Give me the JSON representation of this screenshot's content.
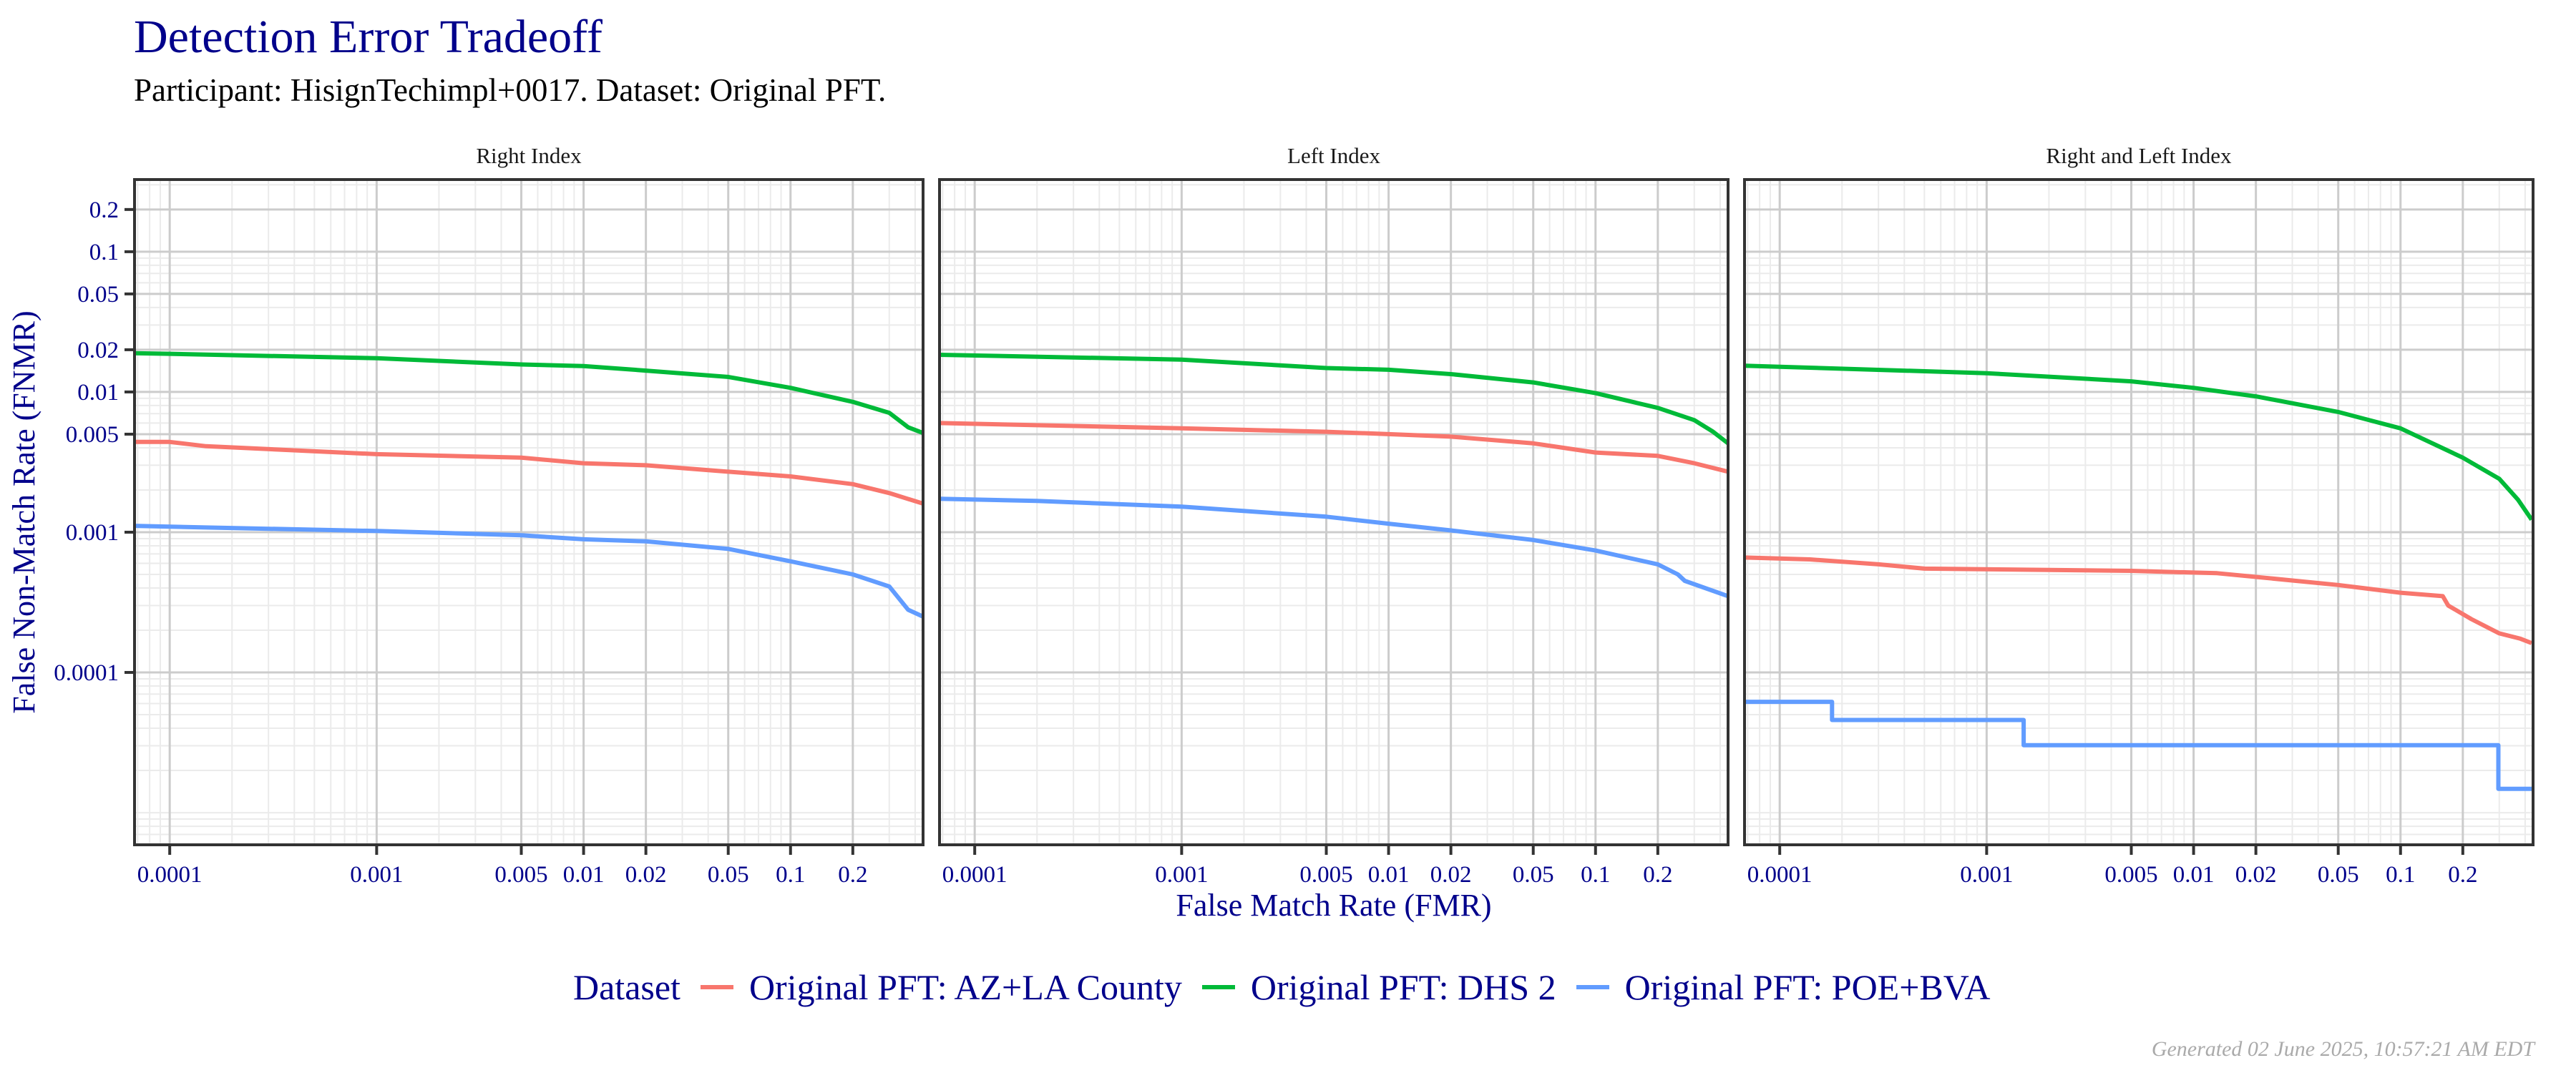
{
  "title": "Detection Error Tradeoff",
  "subtitle": "Participant: HisignTechimpl+0017. Dataset: Original PFT.",
  "footer": "Generated 02 June 2025, 10:57:21 AM EDT",
  "legend": {
    "title": "Dataset",
    "position": "bottom",
    "items": [
      {
        "label": "Original PFT: AZ+LA County",
        "color": "#F8766D"
      },
      {
        "label": "Original PFT: DHS 2",
        "color": "#00BA38"
      },
      {
        "label": "Original PFT: POE+BVA",
        "color": "#619CFF"
      }
    ]
  },
  "chart_data": {
    "type": "line",
    "title": "Detection Error Tradeoff",
    "xlabel": "False Match Rate (FMR)",
    "ylabel": "False Non-Match Rate (FNMR)",
    "xscale": "log",
    "yscale": "log",
    "xlim": [
      6.76e-05,
      0.437
    ],
    "ylim": [
      5.9e-06,
      0.327
    ],
    "grid": true,
    "x_ticks": [
      "0.0001",
      "0.001",
      "0.005",
      "0.01",
      "0.02",
      "0.05",
      "0.1",
      "0.2"
    ],
    "y_ticks": [
      "0.0001",
      "0.001",
      "0.005",
      "0.01",
      "0.02",
      "0.05",
      "0.1",
      "0.2"
    ],
    "facets": [
      {
        "title": "Right Index",
        "series": [
          {
            "name": "Original PFT: AZ+LA County",
            "points": [
              [
                6.76e-05,
                0.0044
              ],
              [
                0.0001,
                0.0044
              ],
              [
                0.00015,
                0.0041
              ],
              [
                0.001,
                0.0036
              ],
              [
                0.005,
                0.0034
              ],
              [
                0.01,
                0.0031
              ],
              [
                0.02,
                0.003
              ],
              [
                0.05,
                0.0027
              ],
              [
                0.1,
                0.0025
              ],
              [
                0.2,
                0.0022
              ],
              [
                0.3,
                0.0019
              ],
              [
                0.437,
                0.0016
              ]
            ]
          },
          {
            "name": "Original PFT: DHS 2",
            "points": [
              [
                6.76e-05,
                0.0189
              ],
              [
                0.0001,
                0.0187
              ],
              [
                0.001,
                0.0174
              ],
              [
                0.005,
                0.0157
              ],
              [
                0.01,
                0.0153
              ],
              [
                0.02,
                0.0142
              ],
              [
                0.05,
                0.0128
              ],
              [
                0.1,
                0.0107
              ],
              [
                0.2,
                0.0085
              ],
              [
                0.3,
                0.0071
              ],
              [
                0.37,
                0.0056
              ],
              [
                0.437,
                0.0051
              ]
            ]
          },
          {
            "name": "Original PFT: POE+BVA",
            "points": [
              [
                6.76e-05,
                0.00111
              ],
              [
                0.00015,
                0.00108
              ],
              [
                0.001,
                0.00102
              ],
              [
                0.005,
                0.00095
              ],
              [
                0.01,
                0.00089
              ],
              [
                0.02,
                0.00086
              ],
              [
                0.05,
                0.00076
              ],
              [
                0.1,
                0.00062
              ],
              [
                0.2,
                0.0005
              ],
              [
                0.3,
                0.00041
              ],
              [
                0.37,
                0.00028
              ],
              [
                0.437,
                0.00025
              ]
            ]
          }
        ]
      },
      {
        "title": "Left Index",
        "series": [
          {
            "name": "Original PFT: AZ+LA County",
            "points": [
              [
                6.76e-05,
                0.006
              ],
              [
                0.001,
                0.0055
              ],
              [
                0.005,
                0.0052
              ],
              [
                0.01,
                0.005
              ],
              [
                0.02,
                0.0048
              ],
              [
                0.05,
                0.0043
              ],
              [
                0.1,
                0.0037
              ],
              [
                0.2,
                0.0035
              ],
              [
                0.3,
                0.0031
              ],
              [
                0.437,
                0.0027
              ]
            ]
          },
          {
            "name": "Original PFT: DHS 2",
            "points": [
              [
                6.76e-05,
                0.0184
              ],
              [
                0.001,
                0.017
              ],
              [
                0.005,
                0.0148
              ],
              [
                0.01,
                0.0144
              ],
              [
                0.02,
                0.0134
              ],
              [
                0.05,
                0.0117
              ],
              [
                0.1,
                0.0098
              ],
              [
                0.2,
                0.0077
              ],
              [
                0.3,
                0.0063
              ],
              [
                0.37,
                0.0052
              ],
              [
                0.437,
                0.0043
              ]
            ]
          },
          {
            "name": "Original PFT: POE+BVA",
            "points": [
              [
                6.76e-05,
                0.00173
              ],
              [
                0.0002,
                0.00167
              ],
              [
                0.001,
                0.00152
              ],
              [
                0.005,
                0.00129
              ],
              [
                0.01,
                0.00115
              ],
              [
                0.02,
                0.00103
              ],
              [
                0.05,
                0.00088
              ],
              [
                0.1,
                0.00074
              ],
              [
                0.2,
                0.00059
              ],
              [
                0.25,
                0.0005
              ],
              [
                0.27,
                0.00045
              ],
              [
                0.437,
                0.00035
              ]
            ]
          }
        ]
      },
      {
        "title": "Right and Left Index",
        "series": [
          {
            "name": "Original PFT: AZ+LA County",
            "points": [
              [
                6.76e-05,
                0.00066
              ],
              [
                0.00014,
                0.00064
              ],
              [
                0.0003,
                0.00059
              ],
              [
                0.0005,
                0.00055
              ],
              [
                0.005,
                0.00053
              ],
              [
                0.013,
                0.00051
              ],
              [
                0.02,
                0.00048
              ],
              [
                0.05,
                0.00042
              ],
              [
                0.1,
                0.00037
              ],
              [
                0.16,
                0.00035
              ],
              [
                0.17,
                0.0003
              ],
              [
                0.22,
                0.00024
              ],
              [
                0.3,
                0.00019
              ],
              [
                0.38,
                0.000174
              ],
              [
                0.43,
                0.000162
              ]
            ]
          },
          {
            "name": "Original PFT: DHS 2",
            "points": [
              [
                6.76e-05,
                0.0154
              ],
              [
                0.001,
                0.0136
              ],
              [
                0.005,
                0.0119
              ],
              [
                0.01,
                0.0107
              ],
              [
                0.02,
                0.0093
              ],
              [
                0.05,
                0.0072
              ],
              [
                0.1,
                0.0055
              ],
              [
                0.2,
                0.0034
              ],
              [
                0.3,
                0.0024
              ],
              [
                0.37,
                0.0017
              ],
              [
                0.43,
                0.00123
              ]
            ]
          },
          {
            "name": "Original PFT: POE+BVA",
            "step": true,
            "points": [
              [
                6.76e-05,
                6.17e-05
              ],
              [
                0.000179,
                4.58e-05
              ],
              [
                0.00151,
                3.03e-05
              ],
              [
                0.297,
                1.48e-05
              ],
              [
                0.43,
                1.48e-05
              ]
            ]
          }
        ]
      }
    ]
  }
}
